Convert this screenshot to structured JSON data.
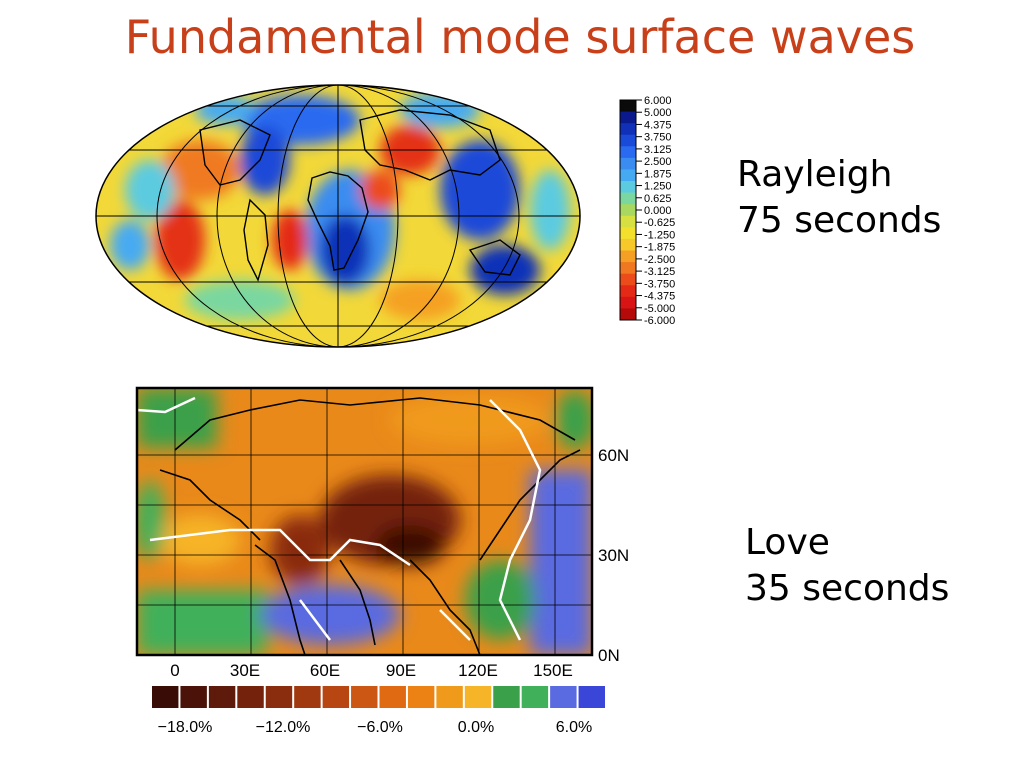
{
  "title": "Fundamental mode surface waves",
  "rayleigh": {
    "line1": "Rayleigh",
    "line2": "75 seconds",
    "scale_labels": [
      "6.000",
      "5.000",
      "4.375",
      "3.750",
      "3.125",
      "2.500",
      "1.875",
      "1.250",
      "0.625",
      "0.000",
      "-0.625",
      "-1.250",
      "-1.875",
      "-2.500",
      "-3.125",
      "-3.750",
      "-4.375",
      "-5.000",
      "-6.000"
    ],
    "scale_colors": [
      "#0a0a0a",
      "#0a1a8c",
      "#1030b8",
      "#1a4ad8",
      "#2a6af0",
      "#3a8cf0",
      "#46aaf2",
      "#5ccbe0",
      "#7ad7a0",
      "#a8d860",
      "#d6e040",
      "#f2e02c",
      "#f6c82a",
      "#f5a024",
      "#f07820",
      "#ec4c1a",
      "#e42a16",
      "#d81414",
      "#b40a0a"
    ]
  },
  "love": {
    "line1": "Love",
    "line2": "35 seconds",
    "lat_labels": [
      "60N",
      "30N",
      "0N"
    ],
    "lon_labels": [
      "0",
      "30E",
      "60E",
      "90E",
      "120E",
      "150E"
    ],
    "scale_labels": [
      "−18.0%",
      "−12.0%",
      "−6.0%",
      "0.0%",
      "6.0%"
    ],
    "scale_colors": [
      "#3a0c06",
      "#4a1208",
      "#5e1a0a",
      "#74220c",
      "#8a2c0e",
      "#a03810",
      "#b84612",
      "#cc5614",
      "#e06a12",
      "#ec8214",
      "#f09a1c",
      "#f6b428",
      "#3aa04a",
      "#40b05a",
      "#5a6ae0",
      "#3a46d8"
    ]
  }
}
